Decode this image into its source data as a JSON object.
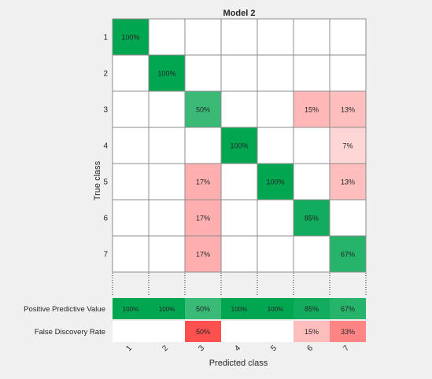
{
  "chart_data": {
    "type": "heatmap",
    "title": "Model 2",
    "xlabel": "Predicted class",
    "ylabel": "True class",
    "classes": [
      "1",
      "2",
      "3",
      "4",
      "5",
      "6",
      "7"
    ],
    "matrix": [
      [
        100,
        null,
        null,
        null,
        null,
        null,
        null
      ],
      [
        null,
        100,
        null,
        null,
        null,
        null,
        null
      ],
      [
        null,
        null,
        50,
        null,
        null,
        15,
        13
      ],
      [
        null,
        null,
        null,
        100,
        null,
        null,
        7
      ],
      [
        null,
        null,
        17,
        null,
        100,
        null,
        13
      ],
      [
        null,
        null,
        17,
        null,
        null,
        85,
        null
      ],
      [
        null,
        null,
        17,
        null,
        null,
        null,
        67
      ]
    ],
    "summary_rows": [
      {
        "label": "Positive Predictive Value",
        "kind": "good",
        "values": [
          100,
          100,
          50,
          100,
          100,
          85,
          67
        ]
      },
      {
        "label": "False Discovery Rate",
        "kind": "bad",
        "values": [
          null,
          null,
          50,
          null,
          null,
          15,
          33
        ]
      }
    ],
    "unit": "%",
    "colors": {
      "good": "#00a650",
      "bad": "#ff5050",
      "empty": "#ffffff",
      "grid": "#8c8c8c",
      "background": "#f0f0f0"
    }
  }
}
